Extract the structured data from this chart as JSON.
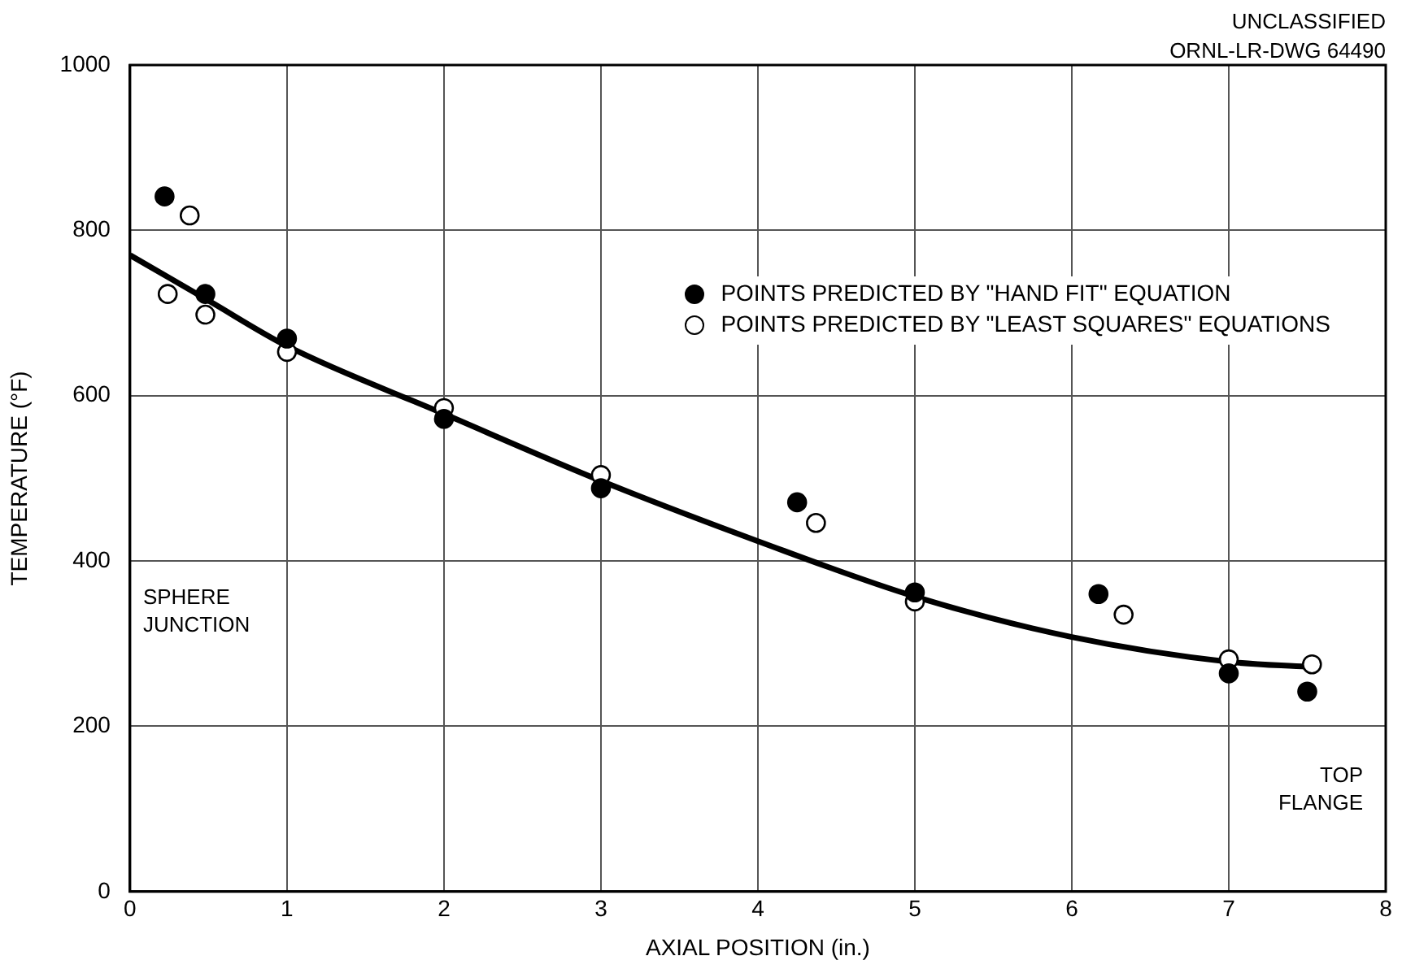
{
  "chart_data": {
    "type": "scatter",
    "xlabel": "AXIAL POSITION (in.)",
    "ylabel": "TEMPERATURE (°F)",
    "xlim": [
      0,
      8
    ],
    "xticks": [
      0,
      1,
      2,
      3,
      4,
      5,
      6,
      7,
      8
    ],
    "ylim": [
      0,
      1000
    ],
    "yticks": [
      0,
      200,
      400,
      600,
      800,
      1000
    ],
    "grid": true,
    "legend": "top right",
    "series": [
      {
        "type": "line",
        "color": "#000000",
        "marker": "none",
        "x": [
          0,
          0.5,
          1,
          2,
          3,
          4,
          5,
          6,
          7,
          7.5
        ],
        "values": [
          770,
          715,
          660,
          578,
          497,
          424,
          357,
          308,
          278,
          272
        ]
      },
      {
        "name": "POINTS PREDICTED BY \"HAND FIT\" EQUATION",
        "color": "#000000",
        "marker": "circle",
        "x": [
          0.22,
          0.48,
          1,
          2,
          3,
          4.25,
          5,
          6.17,
          7,
          7.5
        ],
        "values": [
          841,
          723,
          669,
          572,
          488,
          471,
          362,
          360,
          264,
          242
        ]
      },
      {
        "name": "POINTS PREDICTED BY \"LEAST SQUARES\" EQUATIONS",
        "color": "#ffffff",
        "marker": "circle",
        "x": [
          0.38,
          0.24,
          0.48,
          1,
          2,
          3,
          4.37,
          5,
          6.33,
          7,
          7.53
        ],
        "values": [
          818,
          723,
          698,
          653,
          585,
          504,
          446,
          351,
          335,
          281,
          275
        ]
      }
    ],
    "annotations": [
      "UNCLASSIFIED",
      "ORNL-LR-DWG 64490",
      "SPHERE\nJUNCTION",
      "TOP\nFLANGE"
    ]
  }
}
